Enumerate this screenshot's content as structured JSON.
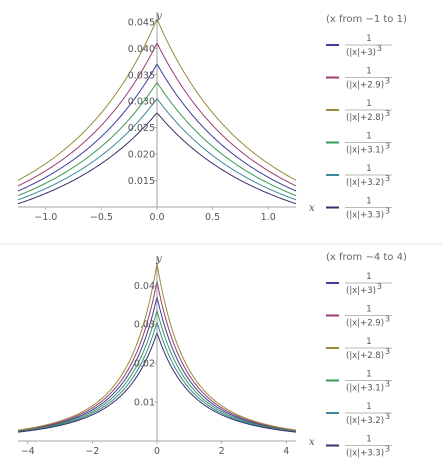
{
  "chart_data": [
    {
      "type": "line",
      "title": "",
      "xlabel": "x",
      "ylabel": "y",
      "xlim": [
        -1.25,
        1.25
      ],
      "ylim": [
        0.01,
        0.0465
      ],
      "x_ticks": [
        "-1.0",
        "-0.5",
        "0.0",
        "0.5",
        "1.0"
      ],
      "x_tick_values": [
        -1.0,
        -0.5,
        0.0,
        0.5,
        1.0
      ],
      "y_ticks": [
        "0.015",
        "0.020",
        "0.025",
        "0.030",
        "0.035",
        "0.040",
        "0.045"
      ],
      "y_tick_values": [
        0.015,
        0.02,
        0.025,
        0.03,
        0.035,
        0.04,
        0.045
      ],
      "range_label": "(x from −1 to 1)",
      "series": [
        {
          "name": "1/(|x|+3)^3",
          "den": "(|x|+3)",
          "exp": "3",
          "c": 3.0,
          "color": "#3f3d99"
        },
        {
          "name": "1/(|x|+2.9)^3",
          "den": "(|x|+2.9)",
          "exp": "3",
          "c": 2.9,
          "color": "#993d71"
        },
        {
          "name": "1/(|x|+2.8)^3",
          "den": "(|x|+2.8)",
          "exp": "3",
          "c": 2.8,
          "color": "#998b3d"
        },
        {
          "name": "1/(|x|+3.1)^3",
          "den": "(|x|+3.1)",
          "exp": "3",
          "c": 3.1,
          "color": "#3d9956"
        },
        {
          "name": "1/(|x|+3.2)^3",
          "den": "(|x|+3.2)",
          "exp": "3",
          "c": 3.2,
          "color": "#3d8899"
        },
        {
          "name": "1/(|x|+3.3)^3",
          "den": "(|x|+3.3)",
          "exp": "3",
          "c": 3.3,
          "color": "#353368"
        }
      ]
    },
    {
      "type": "line",
      "title": "",
      "xlabel": "x",
      "ylabel": "y",
      "xlim": [
        -4.3,
        4.3
      ],
      "ylim": [
        0,
        0.047
      ],
      "x_ticks": [
        "-4",
        "-2",
        "0",
        "2",
        "4"
      ],
      "x_tick_values": [
        -4,
        -2,
        0,
        2,
        4
      ],
      "y_ticks": [
        "0.01",
        "0.02",
        "0.03",
        "0.04"
      ],
      "y_tick_values": [
        0.01,
        0.02,
        0.03,
        0.04
      ],
      "range_label": "(x from −4 to 4)",
      "series": [
        {
          "name": "1/(|x|+3)^3",
          "den": "(|x|+3)",
          "exp": "3",
          "c": 3.0,
          "color": "#3f3d99"
        },
        {
          "name": "1/(|x|+2.9)^3",
          "den": "(|x|+2.9)",
          "exp": "3",
          "c": 2.9,
          "color": "#993d71"
        },
        {
          "name": "1/(|x|+2.8)^3",
          "den": "(|x|+2.8)",
          "exp": "3",
          "c": 2.8,
          "color": "#998b3d"
        },
        {
          "name": "1/(|x|+3.1)^3",
          "den": "(|x|+3.1)",
          "exp": "3",
          "c": 3.1,
          "color": "#3d9956"
        },
        {
          "name": "1/(|x|+3.2)^3",
          "den": "(|x|+3.2)",
          "exp": "3",
          "c": 3.2,
          "color": "#3d8899"
        },
        {
          "name": "1/(|x|+3.3)^3",
          "den": "(|x|+3.3)",
          "exp": "3",
          "c": 3.3,
          "color": "#353368"
        }
      ]
    }
  ],
  "legend_numerator": "1"
}
